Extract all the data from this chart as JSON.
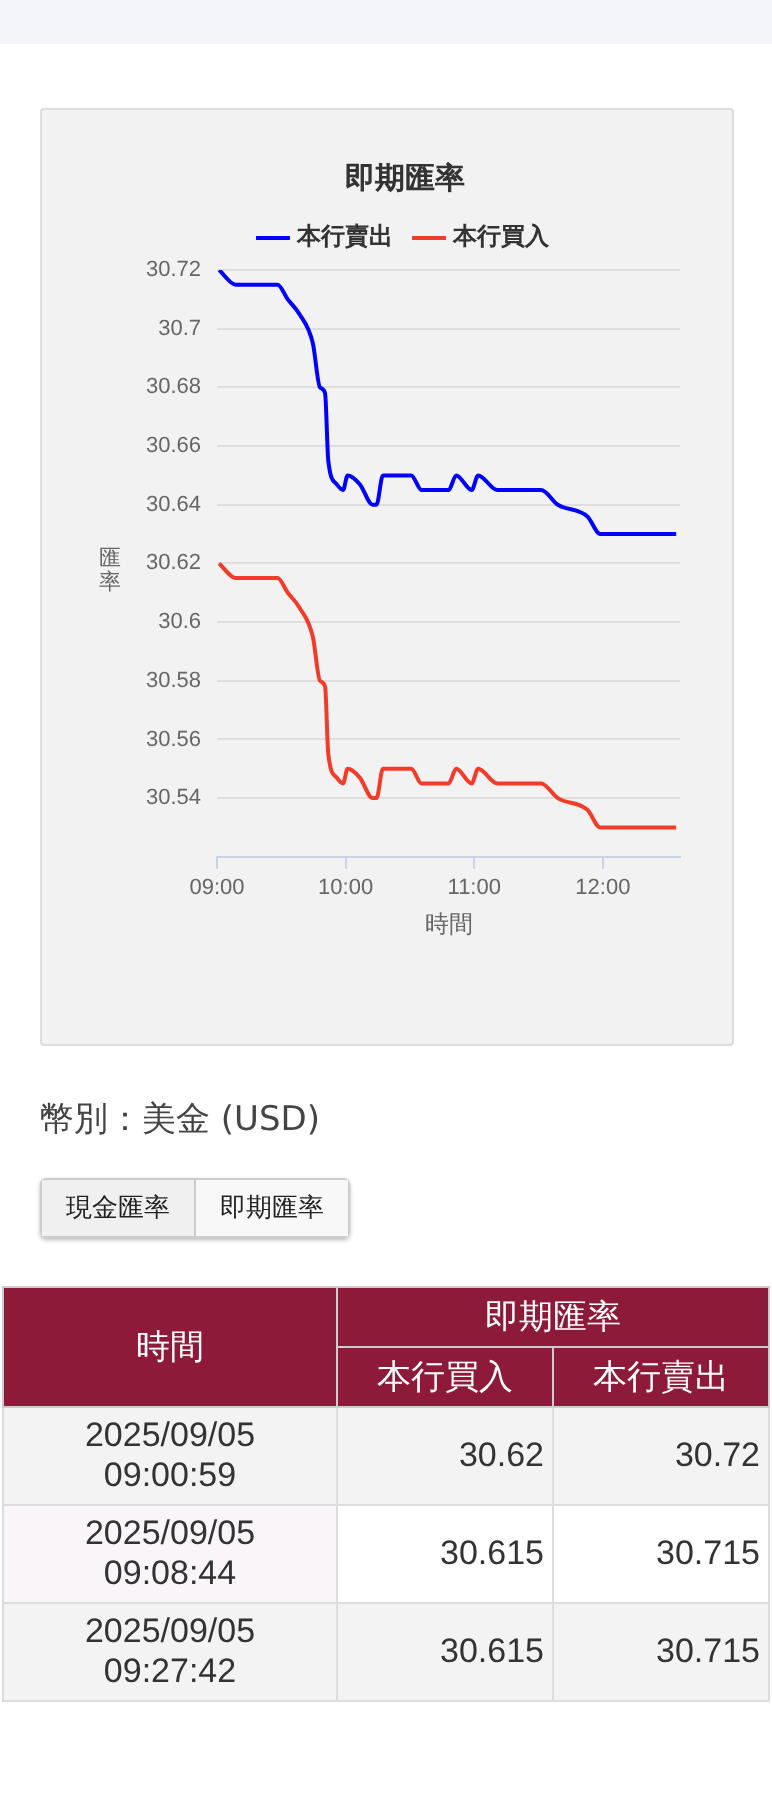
{
  "chart_data": [
    {
      "type": "line",
      "title": "即期匯率",
      "xlabel": "時間",
      "ylabel": "匯率",
      "legend": "top",
      "grid": "y",
      "marker": "none",
      "line_style": "solid",
      "x": [
        9.016,
        9.145,
        9.47,
        9.55,
        9.64,
        9.745,
        9.8,
        9.84,
        9.865,
        9.93,
        9.98,
        10.015,
        10.11,
        10.21,
        10.24,
        10.29,
        10.51,
        10.59,
        10.8,
        10.86,
        10.98,
        11.03,
        11.18,
        11.52,
        11.65,
        11.88,
        11.98,
        12.57
      ],
      "xlim": [
        9,
        12.6
      ],
      "xticks": [
        {
          "value": 9,
          "label": "09:00"
        },
        {
          "value": 10,
          "label": "10:00"
        },
        {
          "value": 11,
          "label": "11:00"
        },
        {
          "value": 12,
          "label": "12:00"
        }
      ],
      "ylim": [
        30.52,
        30.72
      ],
      "yticks": [
        30.54,
        30.56,
        30.58,
        30.6,
        30.62,
        30.64,
        30.66,
        30.68,
        30.7,
        30.72
      ],
      "series": [
        {
          "name": "本行賣出",
          "color": "#0000ff",
          "values": [
            30.72,
            30.715,
            30.715,
            30.71,
            30.705,
            30.695,
            30.68,
            30.678,
            30.655,
            30.647,
            30.645,
            30.65,
            30.647,
            30.64,
            30.64,
            30.65,
            30.65,
            30.645,
            30.645,
            30.65,
            30.645,
            30.65,
            30.645,
            30.645,
            30.64,
            30.636,
            30.63,
            30.63
          ]
        },
        {
          "name": "本行買入",
          "color": "#f03c28",
          "values": [
            30.62,
            30.615,
            30.615,
            30.61,
            30.605,
            30.595,
            30.58,
            30.578,
            30.555,
            30.547,
            30.545,
            30.55,
            30.547,
            30.54,
            30.54,
            30.55,
            30.55,
            30.545,
            30.545,
            30.55,
            30.545,
            30.55,
            30.545,
            30.545,
            30.54,
            30.536,
            30.53,
            30.53
          ]
        }
      ]
    },
    {
      "type": "other",
      "title": "即期匯率",
      "xlabel": "時間",
      "data_labels": true,
      "annotations": [
        "幣別：美金 (USD)",
        "現金匯率",
        "即期匯率"
      ],
      "categories": [
        "2025/09/05 09:00:59",
        "2025/09/05 09:08:44",
        "2025/09/05 09:27:42"
      ],
      "series": [
        {
          "name": "本行買入",
          "colors": [
            "#f3f3f3",
            "#ffffff",
            "#f3f3f3"
          ],
          "values": [
            30.62,
            30.615,
            30.615
          ]
        },
        {
          "name": "本行賣出",
          "colors": [
            "#f3f3f3",
            "#ffffff",
            "#f3f3f3"
          ],
          "values": [
            30.72,
            30.715,
            30.715
          ]
        }
      ]
    }
  ]
}
